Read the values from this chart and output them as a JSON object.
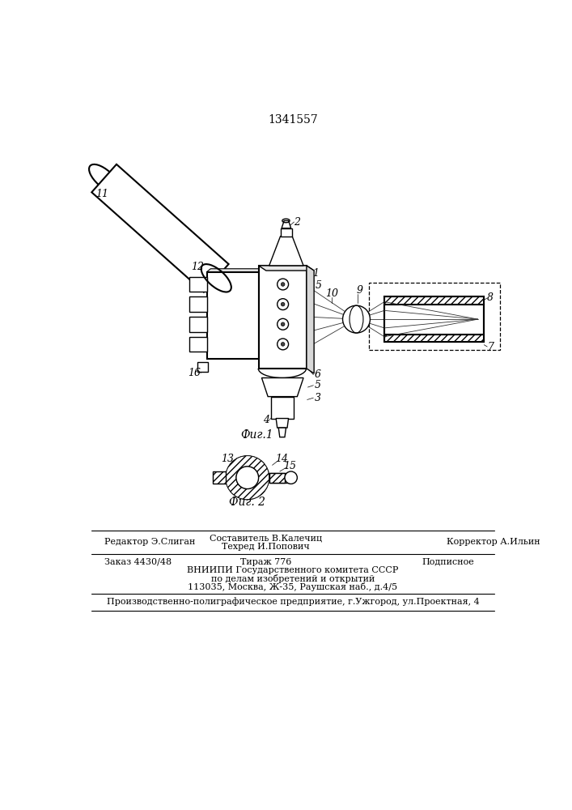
{
  "patent_number": "1341557",
  "fig1_caption": "Фиг.1",
  "fig2_caption": "Фиг. 2",
  "footer_line1_left": "Редактор Э.Слиган",
  "footer_center_top": "Составитель В.Калечиц",
  "footer_center_bot": "Техред И.Попович",
  "footer_line1_right": "Корректор А.Ильин",
  "footer_line2_col1": "Заказ 4430/48",
  "footer_line2_col2": "Тираж 776",
  "footer_line2_col3": "Подписное",
  "footer_line3": "ВНИИПИ Государственного комитета СССР",
  "footer_line4": "по делам изобретений и открытий",
  "footer_line5": "113035, Москва, Ж-35, Раушская наб., д.4/5",
  "footer_line6": "Производственно-полиграфическое предприятие, г.Ужгород, ул.Проектная, 4",
  "bg_color": "#ffffff",
  "line_color": "#000000"
}
